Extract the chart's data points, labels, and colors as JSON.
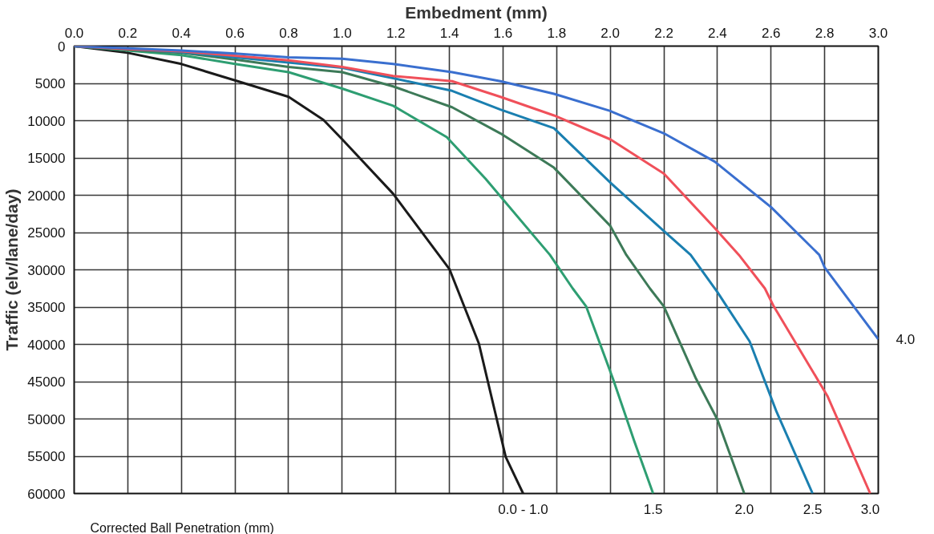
{
  "chart_data": {
    "type": "line",
    "xlabel": "Embedment (mm)",
    "ylabel": "Traffic (elv/lane/day)",
    "xlim": [
      0,
      3.0
    ],
    "ylim": [
      60000,
      0
    ],
    "xticks": [
      {
        "value": 0,
        "label": "0.0"
      },
      0.2,
      0.4,
      0.6,
      0.8,
      {
        "value": 1.0,
        "label": "1.0"
      },
      1.2,
      1.4,
      1.6,
      1.8,
      {
        "value": 2.0,
        "label": "2.0"
      },
      2.2,
      2.4,
      2.6,
      2.8,
      {
        "value": 3.0,
        "label": "3.0"
      }
    ],
    "yticks": [
      0,
      5000,
      10000,
      15000,
      20000,
      25000,
      30000,
      35000,
      40000,
      45000,
      50000,
      55000,
      60000
    ],
    "grid": true,
    "legend": false,
    "marker": "none",
    "line_style": "solid",
    "annotations": [
      "Corrected  Ball Penetration (mm)"
    ],
    "series": [
      {
        "name": "0.0 - 1.0",
        "color": "#1a1a1a",
        "x": [
          0,
          0.2,
          0.4,
          0.6,
          0.8,
          0.93,
          1.0,
          1.19,
          1.4,
          1.51,
          1.61,
          1.675
        ],
        "values": [
          0,
          900,
          2400,
          4600,
          6800,
          9900,
          12500,
          19800,
          29900,
          39900,
          55100,
          60000
        ]
      },
      {
        "name": "1.5",
        "color": "#2e9e72",
        "x": [
          0,
          0.2,
          0.4,
          0.6,
          0.8,
          1.0,
          1.19,
          1.39,
          1.535,
          1.775,
          1.86,
          1.91,
          2.01,
          2.09,
          2.16
        ],
        "values": [
          0,
          600,
          1200,
          2400,
          3500,
          5700,
          8000,
          12200,
          17800,
          28000,
          32500,
          34900,
          44600,
          53000,
          60000
        ]
      },
      {
        "name": "2.0",
        "color": "#3d7a58",
        "x": [
          0,
          0.2,
          0.4,
          0.6,
          0.8,
          1.0,
          1.19,
          1.41,
          1.59,
          1.79,
          2.0,
          2.06,
          2.148,
          2.2,
          2.32,
          2.4,
          2.5
        ],
        "values": [
          0,
          500,
          900,
          1800,
          2800,
          3500,
          5400,
          8200,
          11700,
          16300,
          24100,
          28000,
          32500,
          34900,
          44600,
          50100,
          60000
        ]
      },
      {
        "name": "2.5",
        "color": "#1a7fb0",
        "x": [
          0,
          0.2,
          0.4,
          0.6,
          0.8,
          1.0,
          1.19,
          1.41,
          1.59,
          1.79,
          2.0,
          2.2,
          2.3,
          2.4,
          2.52,
          2.62,
          2.755
        ],
        "values": [
          0,
          400,
          800,
          1500,
          2200,
          2900,
          4300,
          6000,
          8500,
          11000,
          18300,
          24800,
          28000,
          33000,
          39600,
          49000,
          60000
        ]
      },
      {
        "name": "3.0",
        "color": "#f0505a",
        "x": [
          0,
          0.2,
          0.4,
          0.6,
          0.8,
          1.0,
          1.19,
          1.41,
          1.59,
          1.79,
          2.0,
          2.2,
          2.39,
          2.48,
          2.577,
          2.61,
          2.81,
          2.97
        ],
        "values": [
          0,
          400,
          700,
          1300,
          1900,
          2800,
          4000,
          4700,
          6800,
          9300,
          12500,
          17100,
          24400,
          28000,
          32500,
          34900,
          46900,
          60000
        ]
      },
      {
        "name": "4.0",
        "color": "#3a6fcf",
        "x": [
          0,
          0.2,
          0.4,
          0.6,
          0.8,
          1.0,
          1.19,
          1.41,
          1.59,
          1.79,
          2.0,
          2.2,
          2.39,
          2.6,
          2.78,
          2.8,
          3.0
        ],
        "values": [
          0,
          300,
          600,
          1000,
          1500,
          1700,
          2400,
          3500,
          4700,
          6400,
          8700,
          11700,
          15500,
          21600,
          28000,
          29700,
          39300
        ]
      }
    ]
  }
}
